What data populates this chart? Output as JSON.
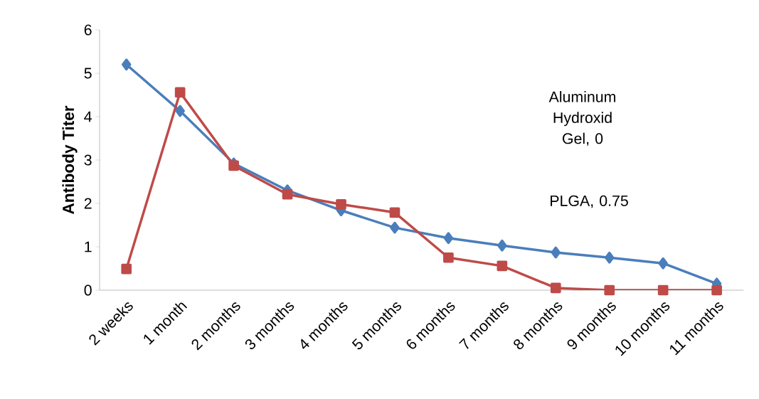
{
  "chart_data": {
    "type": "line",
    "ylabel": "Antibody Titer",
    "categories": [
      "2 weeks",
      "1  month",
      "2 months",
      "3 months",
      "4 months",
      "5 months",
      "6 months",
      "7 months",
      "8 months",
      "9 months",
      "10 months",
      "11 months"
    ],
    "series": [
      {
        "color": "#4a7ebb",
        "marker": "diamond",
        "values": [
          5.2,
          4.13,
          2.92,
          2.3,
          1.84,
          1.44,
          1.2,
          1.03,
          0.87,
          0.75,
          0.62,
          0.15
        ]
      },
      {
        "color": "#be4b48",
        "marker": "square",
        "values": [
          0.49,
          4.56,
          2.87,
          2.21,
          1.98,
          1.79,
          0.75,
          0.56,
          0.05,
          0,
          0,
          0
        ]
      }
    ],
    "ylim": [
      0,
      6
    ],
    "yticks": [
      0,
      1,
      2,
      3,
      4,
      5,
      6
    ],
    "grid": false,
    "annotations": [
      "Aluminum Hydroxid Gel, 0",
      "PLGA, 0.75"
    ]
  }
}
